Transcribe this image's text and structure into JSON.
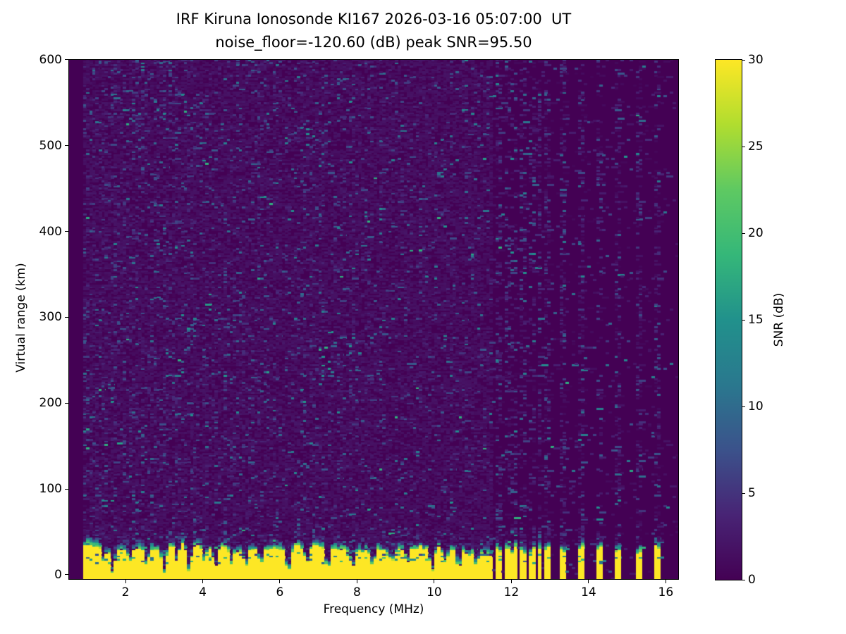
{
  "figure": {
    "title_line1": "IRF Kiruna Ionosonde KI167 2026-03-16 05:07:00  UT",
    "title_line2": "noise_floor=-120.60 (dB) peak SNR=95.50"
  },
  "chart_data": {
    "type": "heatmap",
    "title": "IRF Kiruna Ionosonde KI167 2026-03-16 05:07:00  UT",
    "subtitle": "noise_floor=-120.60 (dB) peak SNR=95.50",
    "station": "KI167",
    "timestamp_ut": "2026-03-16 05:07:00",
    "noise_floor_db": -120.6,
    "peak_snr_db": 95.5,
    "xlabel": "Frequency (MHz)",
    "ylabel": "Virtual range (km)",
    "xlim": [
      0.52,
      16.34
    ],
    "ylim": [
      -5.75,
      600.8
    ],
    "xticks": [
      2,
      4,
      6,
      8,
      10,
      12,
      14,
      16
    ],
    "yticks": [
      0,
      100,
      200,
      300,
      400,
      500,
      600
    ],
    "grid": false,
    "colormap": "viridis",
    "colorbar": {
      "label": "SNR (dB)",
      "min": 0,
      "max": 30,
      "ticks": [
        0,
        5,
        10,
        15,
        20,
        25,
        30
      ],
      "position": "right"
    },
    "features": {
      "data_start_mhz": 0.95,
      "echo_band": {
        "freq_span_mhz": [
          0.95,
          11.5
        ],
        "mean_top_km": 31,
        "transition_thickness_km": 9,
        "snr_db": ">=30 (saturated yellow ground echo)"
      },
      "echo_band_notches": [
        {
          "f": 1.45,
          "d": 0.55
        },
        {
          "f": 1.68,
          "d": 0.95
        },
        {
          "f": 2.12,
          "d": 0.5
        },
        {
          "f": 2.56,
          "d": 0.55
        },
        {
          "f": 3.0,
          "d": 0.9
        },
        {
          "f": 3.34,
          "d": 0.5
        },
        {
          "f": 3.66,
          "d": 0.85
        },
        {
          "f": 4.05,
          "d": 0.5
        },
        {
          "f": 4.33,
          "d": 0.7
        },
        {
          "f": 4.76,
          "d": 0.55
        },
        {
          "f": 5.12,
          "d": 0.6
        },
        {
          "f": 5.52,
          "d": 0.5
        },
        {
          "f": 6.22,
          "d": 0.95
        },
        {
          "f": 6.7,
          "d": 0.55
        },
        {
          "f": 7.25,
          "d": 0.8
        },
        {
          "f": 7.9,
          "d": 0.6
        },
        {
          "f": 8.42,
          "d": 0.5
        },
        {
          "f": 8.92,
          "d": 0.5
        },
        {
          "f": 9.32,
          "d": 0.55
        },
        {
          "f": 9.95,
          "d": 0.85
        },
        {
          "f": 10.3,
          "d": 0.5
        },
        {
          "f": 10.65,
          "d": 0.7
        },
        {
          "f": 11.1,
          "d": 0.55
        }
      ],
      "rfi_cluster_stripes_mhz": [
        11.66,
        11.88,
        12.1,
        12.32,
        12.53,
        12.74,
        12.95
      ],
      "rfi_isolated_stripes_mhz": [
        13.3,
        13.81,
        14.31,
        14.77,
        15.32,
        15.79
      ],
      "stripe_top_km": 28,
      "background_noise": "sparse horizontal speckle dashes 2-12 dB, density decreasing with frequency; vertical RFI speckle columns above each stripe frequency"
    }
  },
  "colors": {
    "background": "#ffffff",
    "axes": "#000000",
    "text": "#000000",
    "viridis_stops": [
      "#440154",
      "#482475",
      "#3b528b",
      "#2a788e",
      "#21918c",
      "#35b779",
      "#5ec962",
      "#b0dd2f",
      "#fde725"
    ]
  }
}
